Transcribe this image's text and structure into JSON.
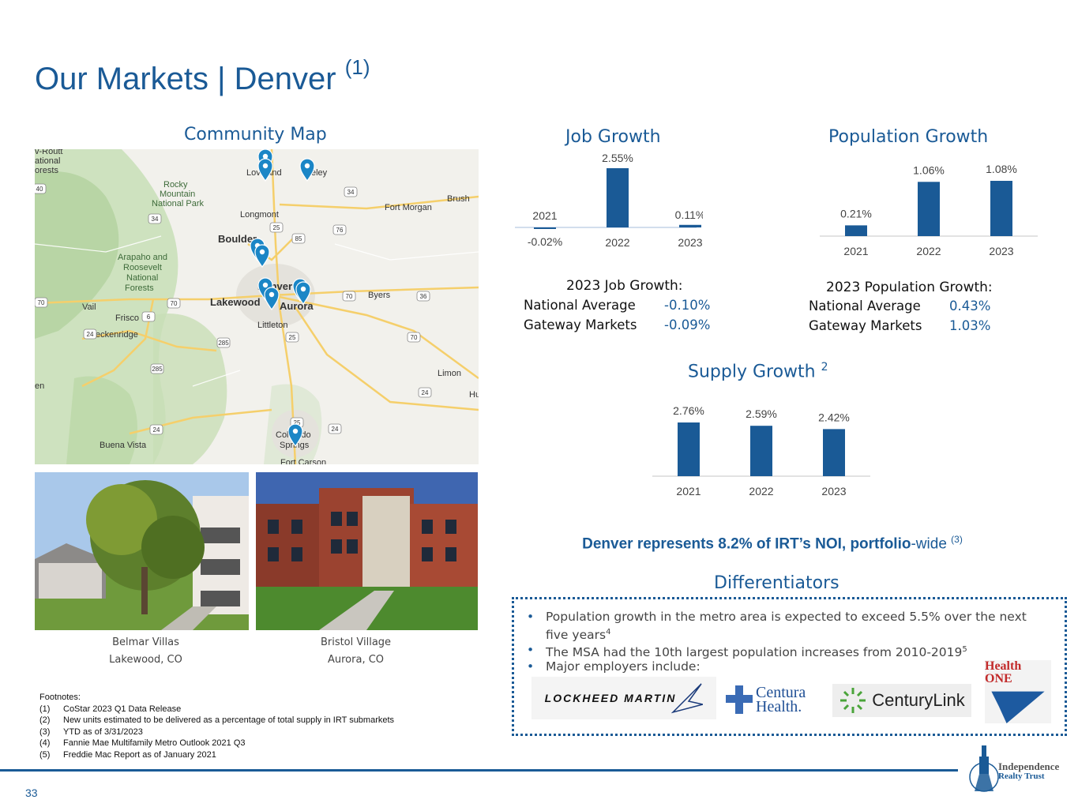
{
  "title": {
    "text": "Our Markets | Denver",
    "sup": "(1)"
  },
  "community_map": {
    "heading": "Community Map",
    "labels": [
      "v-Routt",
      "ational",
      "orests",
      "Rocky",
      "Mountain",
      "National Park",
      "Loveland",
      "eley",
      "Brush",
      "Fort Morgan",
      "Longmont",
      "Boulder",
      "Arapaho and",
      "Roosevelt",
      "National",
      "Forests",
      "Denver",
      "Aurora",
      "Lakewood",
      "Byers",
      "Vail",
      "Frisco",
      "Breckenridge",
      "Littleton",
      "Limon",
      "Hu",
      "en",
      "Colorado",
      "Springs",
      "Fort Carson",
      "Buena Vista"
    ],
    "shields": [
      "40",
      "34",
      "34",
      "25",
      "85",
      "76",
      "70",
      "70",
      "70",
      "6",
      "24",
      "285",
      "25",
      "70",
      "36",
      "285",
      "24",
      "24",
      "24",
      "25"
    ]
  },
  "properties": [
    {
      "name": "Belmar Villas",
      "location": "Lakewood, CO"
    },
    {
      "name": "Bristol Village",
      "location": "Aurora, CO"
    }
  ],
  "job_growth": {
    "heading": "Job Growth",
    "summary_title": "2023 Job Growth:",
    "rows": [
      {
        "label": "National Average",
        "value": "-0.10%"
      },
      {
        "label": "Gateway Markets",
        "value": "-0.09%"
      }
    ]
  },
  "population_growth": {
    "heading": "Population Growth",
    "summary_title": "2023 Population Growth:",
    "rows": [
      {
        "label": "National Average",
        "value": "0.43%"
      },
      {
        "label": "Gateway Markets",
        "value": "1.03%"
      }
    ]
  },
  "supply_growth": {
    "heading": "Supply Growth",
    "sup": "2"
  },
  "chart_data": [
    {
      "type": "bar",
      "title": "Job Growth",
      "categories": [
        "2021",
        "2022",
        "2023"
      ],
      "values": [
        -0.02,
        2.55,
        0.11
      ],
      "value_labels": [
        "-0.02%",
        "2.55%",
        "0.11%"
      ],
      "color": "#1a5a96"
    },
    {
      "type": "bar",
      "title": "Population Growth",
      "categories": [
        "2021",
        "2022",
        "2023"
      ],
      "values": [
        0.21,
        1.06,
        1.08
      ],
      "value_labels": [
        "0.21%",
        "1.06%",
        "1.08%"
      ],
      "color": "#1a5a96"
    },
    {
      "type": "bar",
      "title": "Supply Growth",
      "categories": [
        "2021",
        "2022",
        "2023"
      ],
      "values": [
        2.76,
        2.59,
        2.42
      ],
      "value_labels": [
        "2.76%",
        "2.59%",
        "2.42%"
      ],
      "color": "#1a5a96"
    }
  ],
  "noi": {
    "bold": "Denver represents 8.2% of IRT’s NOI, portfolio",
    "rest": "-wide",
    "sup": "(3)"
  },
  "differentiators": {
    "heading": "Differentiators",
    "bullets": [
      {
        "text": "Population growth in the metro area is expected to exceed 5.5% over the next five years",
        "sup": "4"
      },
      {
        "text": "The MSA had the 10th largest population increases from 2010-2019",
        "sup": "5"
      },
      {
        "text": "Major employers include:",
        "sup": ""
      }
    ],
    "logos": [
      "LOCKHEED MARTIN",
      "Centura Health.",
      "CenturyLink",
      "Health ONE"
    ]
  },
  "footnotes": {
    "heading": "Footnotes:",
    "items": [
      {
        "num": "(1)",
        "text": "CoStar 2023 Q1 Data Release"
      },
      {
        "num": "(2)",
        "text": "New units estimated to be delivered as a percentage of total supply in IRT submarkets"
      },
      {
        "num": "(3)",
        "text": "YTD as of 3/31/2023"
      },
      {
        "num": "(4)",
        "text": "Fannie Mae Multifamily Metro Outlook 2021 Q3"
      },
      {
        "num": "(5)",
        "text": "Freddie Mac Report as of January 2021"
      }
    ]
  },
  "brand": {
    "line1": "Independence",
    "line2": "Realty Trust"
  },
  "page_number": "33",
  "colors": {
    "brand_blue": "#1a5a96"
  }
}
